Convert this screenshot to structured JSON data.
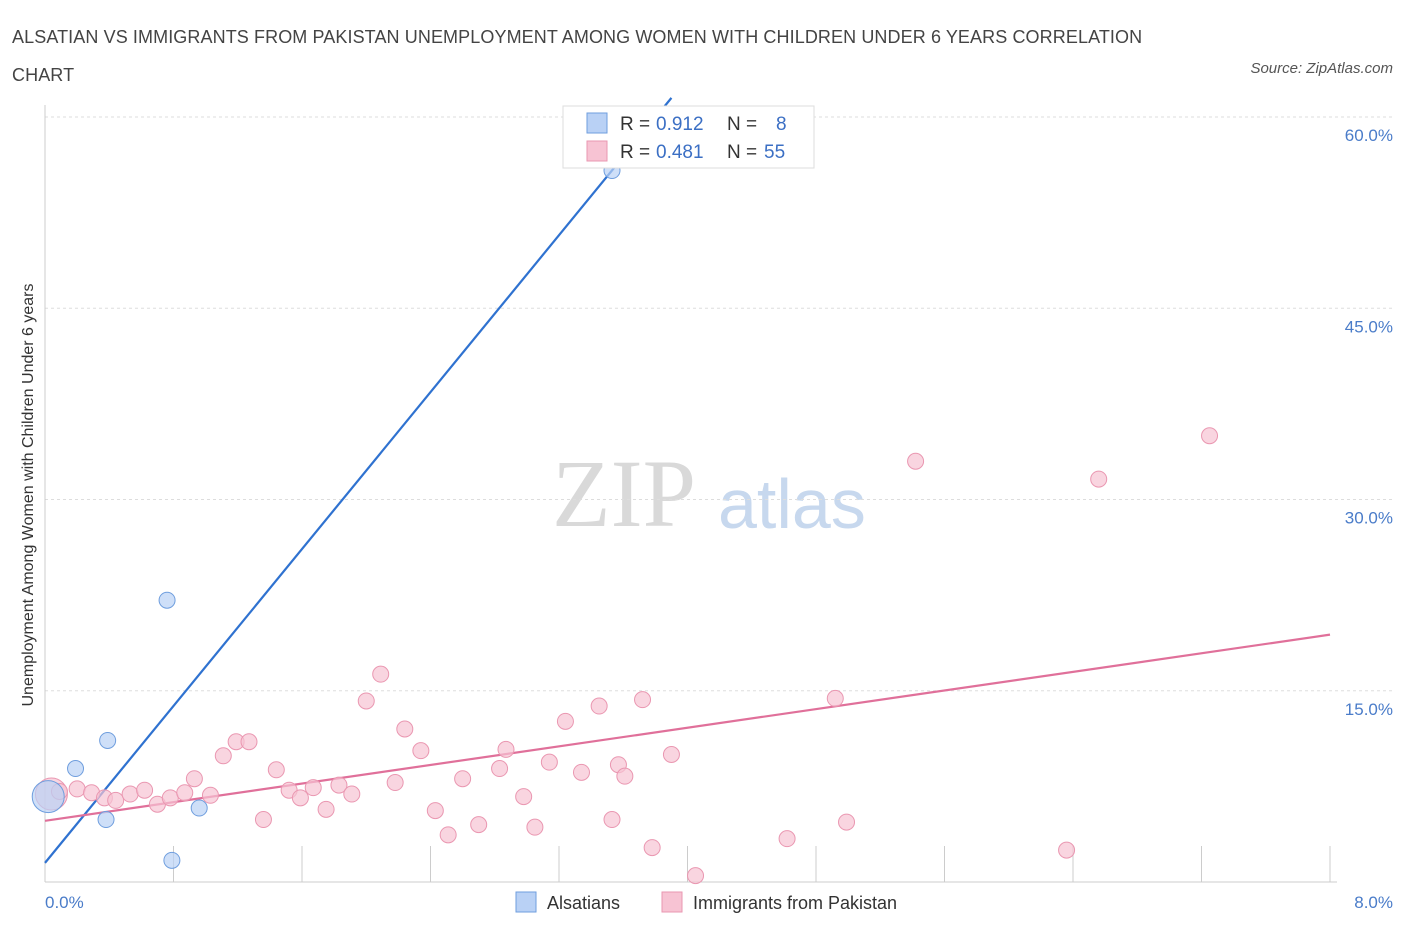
{
  "title": "ALSATIAN VS IMMIGRANTS FROM PAKISTAN UNEMPLOYMENT AMONG WOMEN WITH CHILDREN UNDER 6 YEARS CORRELATION CHART",
  "source": "Source: ZipAtlas.com",
  "watermark": {
    "zip": "ZIP",
    "atlas": "atlas"
  },
  "colors": {
    "blue_fill": "#b9d1f5",
    "blue_stroke": "#6f9ede",
    "blue_line": "#2f72d0",
    "pink_fill": "#f7c3d3",
    "pink_stroke": "#ea97b1",
    "pink_line": "#e0709a",
    "axis_text": "#4a7cc9",
    "grid": "#dddddd"
  },
  "legend_top": {
    "rows": [
      {
        "r_label": "R =",
        "r": "0.912",
        "n_label": "N =",
        "n": "8"
      },
      {
        "r_label": "R =",
        "r": "0.481",
        "n_label": "N =",
        "n": "55"
      }
    ]
  },
  "chart_data": {
    "type": "scatter",
    "title": "ALSATIAN VS IMMIGRANTS FROM PAKISTAN UNEMPLOYMENT AMONG WOMEN WITH CHILDREN UNDER 6 YEARS CORRELATION CHART",
    "xlabel": "",
    "ylabel": "Unemployment Among Women with Children Under 6 years",
    "xlim": [
      0,
      8
    ],
    "ylim": [
      0,
      60
    ],
    "x_tick_labels": [
      "0.0%",
      "8.0%"
    ],
    "y_ticks": [
      15,
      30,
      45,
      60
    ],
    "y_tick_labels": [
      "15.0%",
      "30.0%",
      "45.0%",
      "60.0%"
    ],
    "grid": true,
    "legend_position": "bottom-center",
    "series": [
      {
        "name": "Alsatians",
        "color": "#b9d1f5",
        "R": 0.912,
        "N": 8,
        "points": [
          [
            0.02,
            6.7
          ],
          [
            0.19,
            8.9
          ],
          [
            0.39,
            11.1
          ],
          [
            0.76,
            22.1
          ],
          [
            0.38,
            4.9
          ],
          [
            0.96,
            5.8
          ],
          [
            0.79,
            1.7
          ],
          [
            3.53,
            55.8
          ]
        ],
        "trend": [
          [
            0.0,
            1.5
          ],
          [
            3.9,
            61.5
          ]
        ]
      },
      {
        "name": "Immigrants from Pakistan",
        "color": "#f7c3d3",
        "R": 0.481,
        "N": 55,
        "points": [
          [
            0.04,
            6.9
          ],
          [
            0.09,
            7.1
          ],
          [
            0.2,
            7.3
          ],
          [
            0.29,
            7.0
          ],
          [
            0.37,
            6.6
          ],
          [
            0.44,
            6.4
          ],
          [
            0.53,
            6.9
          ],
          [
            0.62,
            7.2
          ],
          [
            0.7,
            6.1
          ],
          [
            0.78,
            6.6
          ],
          [
            0.87,
            7.0
          ],
          [
            0.93,
            8.1
          ],
          [
            1.03,
            6.8
          ],
          [
            1.11,
            9.9
          ],
          [
            1.19,
            11.0
          ],
          [
            1.27,
            11.0
          ],
          [
            1.36,
            4.9
          ],
          [
            1.44,
            8.8
          ],
          [
            1.52,
            7.2
          ],
          [
            1.59,
            6.6
          ],
          [
            1.67,
            7.4
          ],
          [
            1.75,
            5.7
          ],
          [
            1.83,
            7.6
          ],
          [
            1.91,
            6.9
          ],
          [
            2.0,
            14.2
          ],
          [
            2.09,
            16.3
          ],
          [
            2.18,
            7.8
          ],
          [
            2.24,
            12.0
          ],
          [
            2.34,
            10.3
          ],
          [
            2.43,
            5.6
          ],
          [
            2.51,
            3.7
          ],
          [
            2.6,
            8.1
          ],
          [
            2.7,
            4.5
          ],
          [
            2.83,
            8.9
          ],
          [
            2.87,
            10.4
          ],
          [
            2.98,
            6.7
          ],
          [
            3.05,
            4.3
          ],
          [
            3.14,
            9.4
          ],
          [
            3.24,
            12.6
          ],
          [
            3.34,
            8.6
          ],
          [
            3.45,
            13.8
          ],
          [
            3.53,
            4.9
          ],
          [
            3.57,
            9.2
          ],
          [
            3.61,
            8.3
          ],
          [
            3.72,
            14.3
          ],
          [
            3.78,
            2.7
          ],
          [
            3.9,
            10.0
          ],
          [
            4.05,
            0.5
          ],
          [
            4.62,
            3.4
          ],
          [
            4.92,
            14.4
          ],
          [
            4.99,
            4.7
          ],
          [
            5.42,
            33.0
          ],
          [
            6.36,
            2.5
          ],
          [
            6.56,
            31.6
          ],
          [
            7.25,
            35.0
          ]
        ],
        "trend": [
          [
            0.0,
            4.8
          ],
          [
            8.0,
            19.4
          ]
        ]
      }
    ]
  }
}
